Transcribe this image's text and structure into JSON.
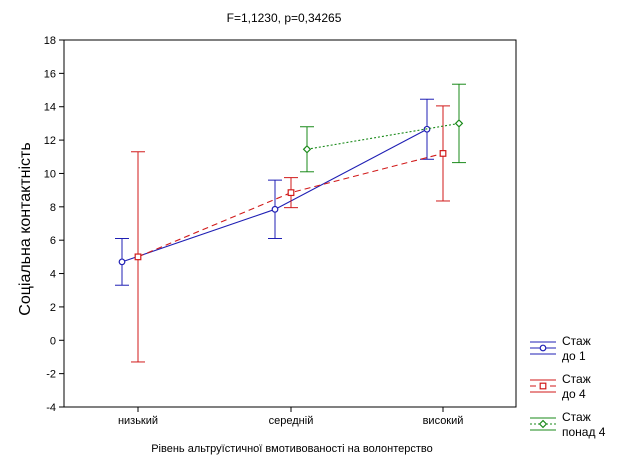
{
  "chart_data": {
    "type": "line",
    "title": "F=1,1230, p=0,34265",
    "xlabel": "Рівень альтруїстичної вмотивованості на волонтерство",
    "ylabel": "Соціальна контактність",
    "categories": [
      "низький",
      "середній",
      "високий"
    ],
    "ylim": [
      -4,
      18
    ],
    "yticks": [
      -4,
      -2,
      0,
      2,
      4,
      6,
      8,
      10,
      12,
      14,
      16,
      18
    ],
    "grid": false,
    "legend_position": "bottom-right",
    "series": [
      {
        "name": "Стаж до 1",
        "legend_lines": [
          "Стаж",
          "до 1"
        ],
        "color": "#1f1fb4",
        "marker": "circle",
        "line_style": "solid",
        "points": [
          {
            "category": "низький",
            "mean": 4.7,
            "lower": 3.3,
            "upper": 6.1
          },
          {
            "category": "середній",
            "mean": 7.85,
            "lower": 6.1,
            "upper": 9.6
          },
          {
            "category": "високий",
            "mean": 12.65,
            "lower": 10.85,
            "upper": 14.45
          }
        ]
      },
      {
        "name": "Стаж до 4",
        "legend_lines": [
          "Стаж",
          "до 4"
        ],
        "color": "#d11a1a",
        "marker": "square",
        "line_style": "dashed",
        "points": [
          {
            "category": "низький",
            "mean": 5.0,
            "lower": -1.3,
            "upper": 11.3
          },
          {
            "category": "середній",
            "mean": 8.85,
            "lower": 7.95,
            "upper": 9.75
          },
          {
            "category": "високий",
            "mean": 11.2,
            "lower": 8.35,
            "upper": 14.05
          }
        ]
      },
      {
        "name": "Стаж понад 4",
        "legend_lines": [
          "Стаж",
          "понад 4"
        ],
        "color": "#1a8a1a",
        "marker": "diamond",
        "line_style": "dotted",
        "points": [
          {
            "category": "середній",
            "mean": 11.45,
            "lower": 10.1,
            "upper": 12.8
          },
          {
            "category": "високий",
            "mean": 13.0,
            "lower": 10.65,
            "upper": 15.35
          }
        ]
      }
    ]
  }
}
